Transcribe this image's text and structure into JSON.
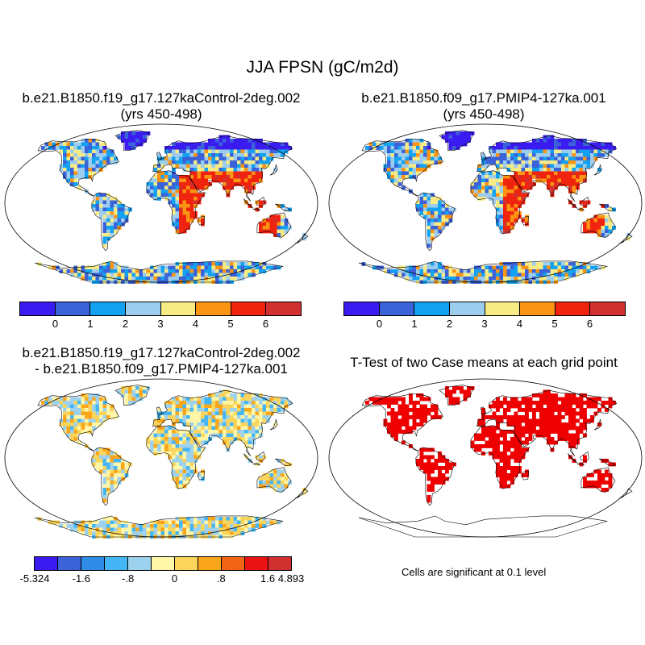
{
  "title": "JJA FPSN (gC/m2d)",
  "panels": [
    {
      "title1": "b.e21.B1850.f19_g17.127kaControl-2deg.002",
      "title2": "(yrs 450-498)"
    },
    {
      "title1": "b.e21.B1850.f09_g17.PMIP4-127ka.001",
      "title2": "(yrs 450-498)"
    },
    {
      "title1": "b.e21.B1850.f19_g17.127kaControl-2deg.002",
      "title2": "- b.e21.B1850.f09_g17.PMIP4-127ka.001"
    },
    {
      "title1": "T-Test of two Case means at each grid point"
    }
  ],
  "colorbar_top": {
    "colors": [
      "#3a1cf0",
      "#3b62d8",
      "#13a2f2",
      "#9ccdee",
      "#f7eb85",
      "#fb9413",
      "#f0230f",
      "#d13030"
    ],
    "labels": [
      "0",
      "1",
      "2",
      "3",
      "4",
      "5",
      "6"
    ]
  },
  "colorbar_diff": {
    "colors": [
      "#3a1cf0",
      "#3b62d8",
      "#2f8ce6",
      "#45b6f5",
      "#9cd2ee",
      "#fff6a8",
      "#fbd45a",
      "#f9a61b",
      "#f36414",
      "#ea1212",
      "#d13030"
    ],
    "labels": [
      "-5.324",
      "-1.6",
      "-.8",
      "0",
      ".8",
      "1.6",
      "4.893"
    ]
  },
  "significance_note": "Cells are significant at 0.1 level",
  "colors": {
    "ocean": "#ffffff",
    "ttest": "#ee0000",
    "outline": "#000000"
  }
}
